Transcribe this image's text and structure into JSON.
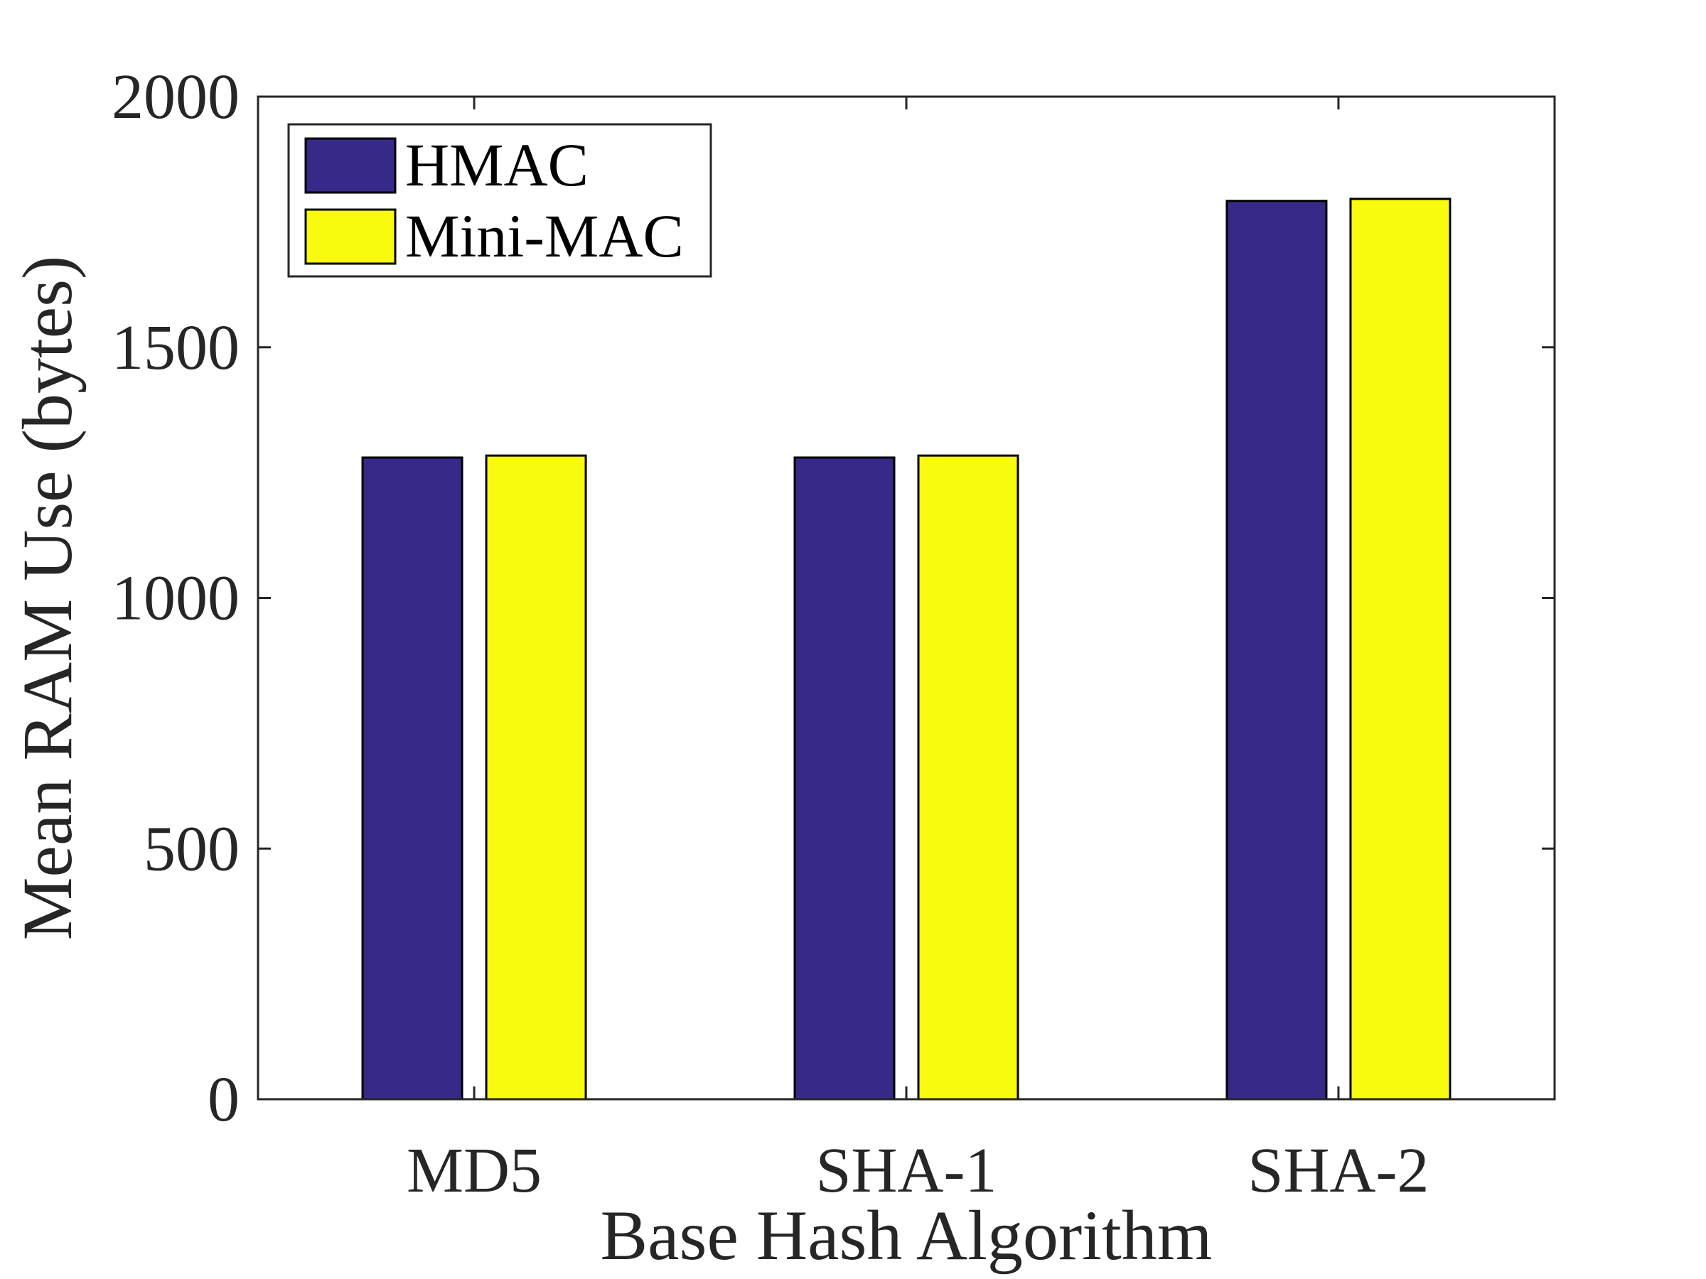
{
  "chart_data": {
    "type": "bar",
    "xlabel": "Base Hash Algorithm",
    "ylabel": "Mean RAM Use (bytes)",
    "categories": [
      "MD5",
      "SHA-1",
      "SHA-2"
    ],
    "series": [
      {
        "name": "HMAC",
        "values": [
          1280,
          1280,
          1792
        ],
        "color": "#352a87"
      },
      {
        "name": "Mini-MAC",
        "values": [
          1284,
          1284,
          1796
        ],
        "color": "#f9fb0e"
      }
    ],
    "ylim": [
      0,
      2000
    ],
    "yticks": [
      0,
      500,
      1000,
      1500,
      2000
    ],
    "grid": false,
    "legend_position": "top-left"
  }
}
